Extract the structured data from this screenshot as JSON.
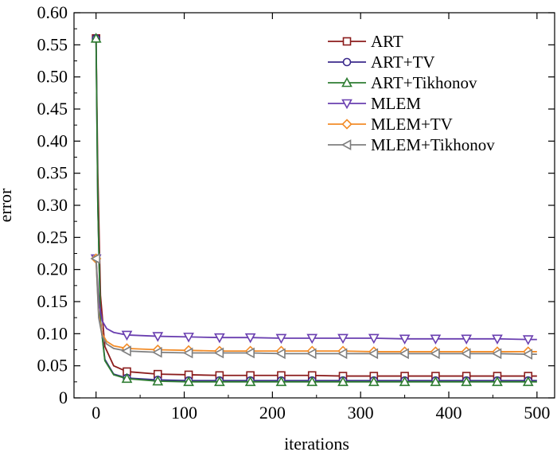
{
  "chart_data": {
    "type": "line",
    "xlabel": "iterations",
    "ylabel": "error",
    "xlim": [
      -25,
      520
    ],
    "ylim": [
      0,
      0.6
    ],
    "x_ticks": [
      0,
      100,
      200,
      300,
      400,
      500
    ],
    "y_ticks": [
      0,
      0.05,
      0.1,
      0.15,
      0.2,
      0.25,
      0.3,
      0.35,
      0.4,
      0.45,
      0.5,
      0.55,
      0.6
    ],
    "x_tick_labels": [
      "0",
      "100",
      "200",
      "300",
      "400",
      "500"
    ],
    "y_tick_labels": [
      "0",
      "0.05",
      "0.10",
      "0.15",
      "0.20",
      "0.25",
      "0.30",
      "0.35",
      "0.40",
      "0.45",
      "0.50",
      "0.55",
      "0.60"
    ],
    "grid": false,
    "legend_position": "top-right",
    "marker_x": [
      0,
      35,
      70,
      105,
      140,
      175,
      210,
      245,
      280,
      315,
      350,
      385,
      420,
      455,
      490
    ],
    "series": [
      {
        "name": "ART",
        "color": "#8b1c1c",
        "marker": "square",
        "start": 0.56,
        "x": [
          0,
          2,
          5,
          10,
          20,
          35,
          70,
          105,
          140,
          175,
          210,
          245,
          280,
          315,
          350,
          385,
          420,
          455,
          490,
          500
        ],
        "values": [
          0.56,
          0.35,
          0.16,
          0.08,
          0.05,
          0.041,
          0.037,
          0.036,
          0.035,
          0.035,
          0.035,
          0.035,
          0.034,
          0.034,
          0.034,
          0.034,
          0.034,
          0.034,
          0.034,
          0.034
        ]
      },
      {
        "name": "ART+TV",
        "color": "#3b2a8c",
        "marker": "circle",
        "start": 0.56,
        "x": [
          0,
          2,
          5,
          10,
          20,
          35,
          70,
          105,
          140,
          175,
          210,
          245,
          280,
          315,
          350,
          385,
          420,
          455,
          490,
          500
        ],
        "values": [
          0.56,
          0.3,
          0.12,
          0.06,
          0.037,
          0.031,
          0.028,
          0.027,
          0.027,
          0.027,
          0.027,
          0.027,
          0.027,
          0.027,
          0.027,
          0.027,
          0.027,
          0.027,
          0.027,
          0.027
        ]
      },
      {
        "name": "ART+Tikhonov",
        "color": "#2e7d32",
        "marker": "triangle-up",
        "start": 0.56,
        "x": [
          0,
          2,
          5,
          10,
          20,
          35,
          70,
          105,
          140,
          175,
          210,
          245,
          280,
          315,
          350,
          385,
          420,
          455,
          490,
          500
        ],
        "values": [
          0.56,
          0.3,
          0.12,
          0.058,
          0.036,
          0.03,
          0.026,
          0.025,
          0.025,
          0.025,
          0.025,
          0.025,
          0.025,
          0.025,
          0.025,
          0.025,
          0.025,
          0.025,
          0.025,
          0.025
        ]
      },
      {
        "name": "MLEM",
        "color": "#6a3fb0",
        "marker": "triangle-down",
        "start": 0.217,
        "x": [
          0,
          3,
          7,
          12,
          20,
          35,
          70,
          105,
          140,
          175,
          210,
          245,
          280,
          315,
          350,
          385,
          420,
          455,
          490,
          500
        ],
        "values": [
          0.217,
          0.15,
          0.12,
          0.108,
          0.102,
          0.098,
          0.096,
          0.095,
          0.094,
          0.094,
          0.093,
          0.093,
          0.093,
          0.093,
          0.092,
          0.092,
          0.092,
          0.092,
          0.091,
          0.091
        ]
      },
      {
        "name": "MLEM+TV",
        "color": "#f28c28",
        "marker": "diamond",
        "start": 0.217,
        "x": [
          0,
          3,
          7,
          12,
          20,
          35,
          70,
          105,
          140,
          175,
          210,
          245,
          280,
          315,
          350,
          385,
          420,
          455,
          490,
          500
        ],
        "values": [
          0.217,
          0.13,
          0.1,
          0.088,
          0.081,
          0.077,
          0.075,
          0.074,
          0.073,
          0.073,
          0.073,
          0.073,
          0.073,
          0.072,
          0.072,
          0.072,
          0.072,
          0.072,
          0.072,
          0.072
        ]
      },
      {
        "name": "MLEM+Tikhonov",
        "color": "#7f7f7f",
        "marker": "triangle-left",
        "start": 0.217,
        "x": [
          0,
          3,
          7,
          12,
          20,
          35,
          70,
          105,
          140,
          175,
          210,
          245,
          280,
          315,
          350,
          385,
          420,
          455,
          490,
          500
        ],
        "values": [
          0.217,
          0.125,
          0.096,
          0.084,
          0.077,
          0.073,
          0.071,
          0.07,
          0.07,
          0.07,
          0.069,
          0.069,
          0.069,
          0.069,
          0.069,
          0.069,
          0.069,
          0.069,
          0.068,
          0.068
        ]
      }
    ]
  }
}
